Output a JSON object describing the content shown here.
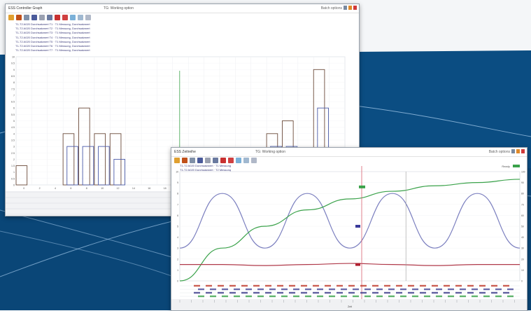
{
  "colors": {
    "bg_top": "#f4f6f8",
    "bg_blue": "#0b4d82",
    "bg_blue_dark": "#083d6b",
    "curve_light": "#9bc2e4",
    "sine": "#7b7fbf",
    "growth": "#3aa24a",
    "red_line": "#b03a4a",
    "hist_dark": "#6b4a3a",
    "hist_blue": "#4a5aa8",
    "cursor_red": "#d86070"
  },
  "window1": {
    "title": "ESS Controller Graph",
    "filter": "TG: Working option",
    "right_label": "Batch options",
    "toolbar_icons": [
      "open-icon",
      "wrench-icon",
      "table-icon",
      "save-icon",
      "filter-icon",
      "chart-icon",
      "pin-icon",
      "pin-icon",
      "grid-icon",
      "refresh-icon",
      "zoom-icon"
    ],
    "legend": [
      "T1-T2 A020 Durchsatzwert T1 · T1 Messung, Durchsatzwert",
      "T1-T2 A020 Durchsatzwert T2 · T1 Messung, Durchsatzwert",
      "T1-T2 A020 Durchsatzwert T3 · T1 Messung, Durchsatzwert",
      "T1-T2 A020 Durchsatzwert T4 · T1 Messung, Durchsatzwert",
      "T1-T2 A020 Durchsatzwert T5 · T1 Messung, Durchsatzwert",
      "T1-T2 A020 Durchsatzwert T6 · T1 Messung, Durchsatzwert",
      "T1-T2 A020 Durchsatzwert T7 · T1 Messung, Durchsatzwert"
    ],
    "y_ticks": [
      "10",
      "9.5",
      "9",
      "8.5",
      "8",
      "7.5",
      "7",
      "6.5",
      "6",
      "5.5",
      "5",
      "4.5",
      "4",
      "3.5",
      "3",
      "2.5",
      "2",
      "1.5",
      "1",
      "0.5",
      "0"
    ],
    "x_ticks": [
      "0",
      "2",
      "4",
      "6",
      "8",
      "10",
      "12",
      "14",
      "16",
      "18",
      "20",
      "22",
      "24",
      "26",
      "28",
      "30",
      "32",
      "34",
      "36",
      "38",
      "40"
    ]
  },
  "window2": {
    "title": "ESS Zeitreihe",
    "filter": "TG: Working option",
    "right_label": "Batch options",
    "status_label": "Ready",
    "toolbar_icons": [
      "open-icon",
      "wrench-icon",
      "table-icon",
      "save-icon",
      "filter-icon",
      "chart-icon",
      "pin-icon",
      "pin-icon",
      "grid-icon",
      "refresh-icon",
      "zoom-icon"
    ],
    "legend": [
      "T1-T2 A020 Durchsatzwert · T1 Messung",
      "T1-T2 A020 Durchsatzwert · T2 Messung"
    ],
    "y_left_ticks": [
      "10",
      "9",
      "8",
      "7",
      "6",
      "5",
      "4",
      "3",
      "2",
      "1",
      "0"
    ],
    "y_right_ticks": [
      "100",
      "90",
      "80",
      "70",
      "60",
      "50",
      "40",
      "30",
      "20",
      "10",
      "0"
    ],
    "x_label": "Zeit"
  },
  "chart_data": [
    {
      "type": "bar",
      "title": "",
      "categories": [
        "0",
        "2",
        "4",
        "6",
        "8",
        "10",
        "12",
        "14",
        "16",
        "18",
        "20",
        "22",
        "24",
        "26",
        "28",
        "30",
        "32",
        "34",
        "36",
        "38",
        "40"
      ],
      "series": [
        {
          "values": [
            1.5,
            0,
            0,
            4,
            6,
            4,
            4,
            0,
            0,
            0,
            0,
            1,
            1,
            0,
            0,
            0,
            4,
            5,
            0,
            9,
            0
          ]
        },
        {
          "values": [
            0,
            0,
            0,
            3,
            3,
            3,
            2,
            0,
            0,
            0,
            0,
            0,
            0,
            0,
            0,
            0,
            3,
            3,
            0,
            6,
            0
          ]
        }
      ],
      "ylim": [
        0,
        10
      ],
      "grid": true
    },
    {
      "type": "line",
      "x_range": [
        0,
        100
      ],
      "series": [
        {
          "values": [
            3,
            8,
            3,
            8,
            3,
            8,
            3,
            8,
            3
          ]
        },
        {
          "values": [
            0,
            3,
            5,
            6.5,
            7.5,
            8.2,
            8.7,
            9,
            9.3
          ]
        },
        {
          "values": [
            1.5,
            1.5,
            1.4,
            1.5,
            1.6,
            1.5,
            1.4,
            1.5,
            1.5
          ]
        }
      ],
      "ylim": [
        0,
        10
      ],
      "grid": true
    }
  ]
}
